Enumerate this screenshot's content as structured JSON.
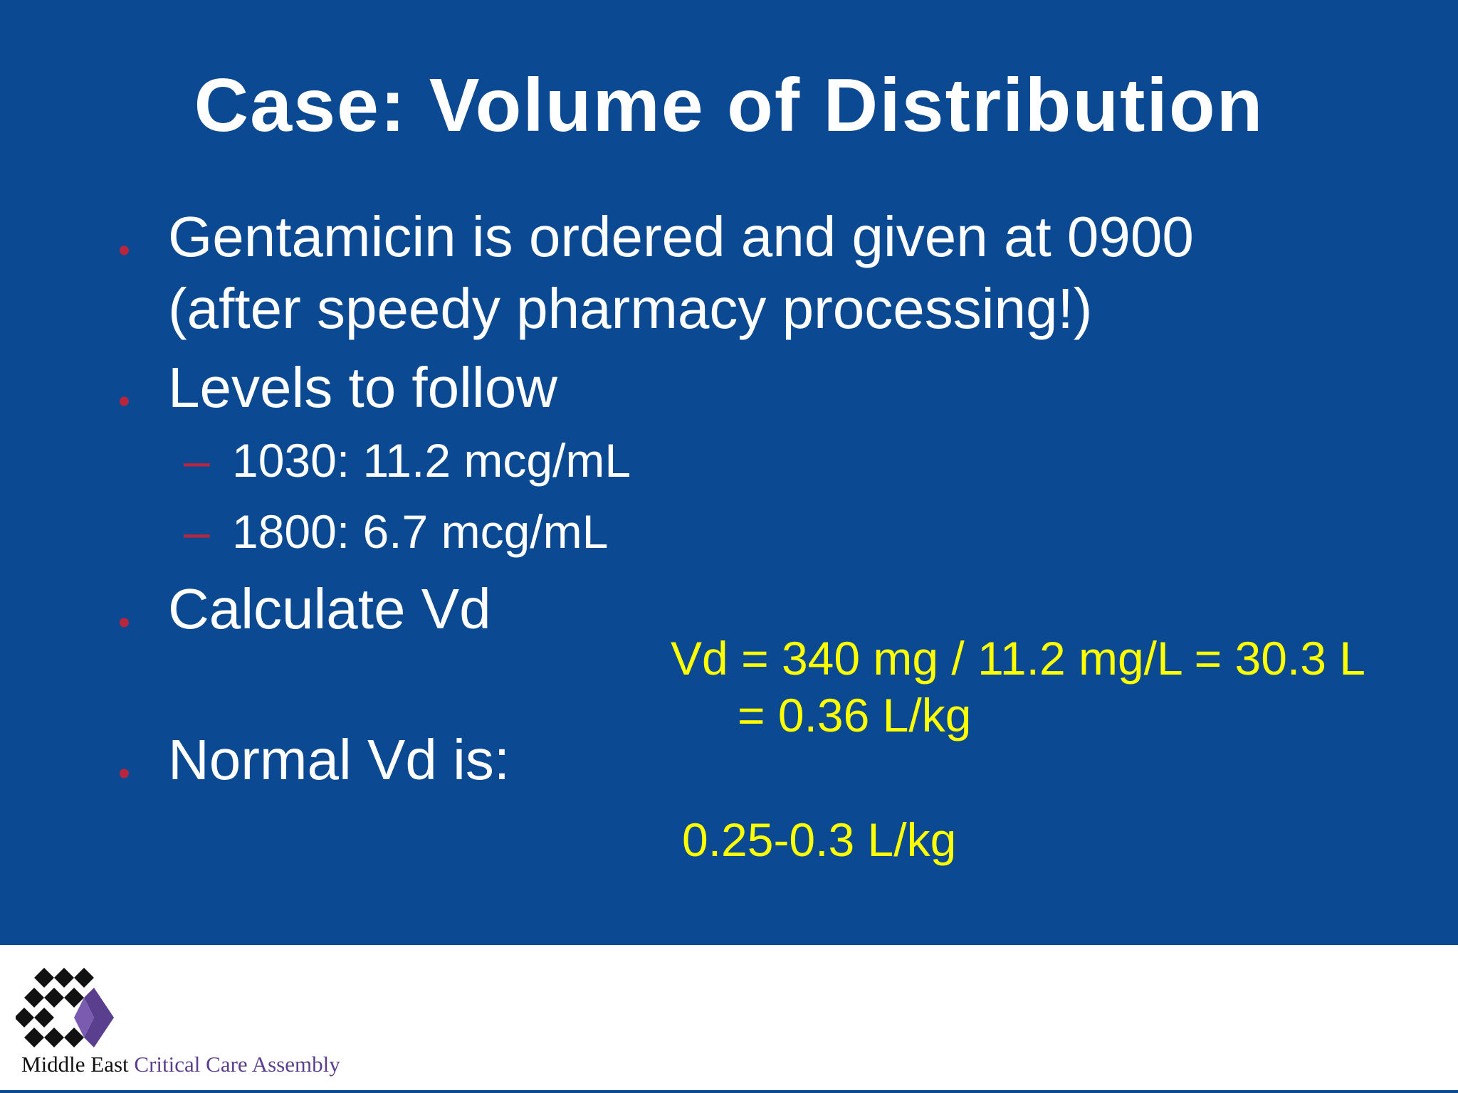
{
  "slide": {
    "title": "Case: Volume of Distribution",
    "bullets": [
      {
        "lines": [
          "Gentamicin is ordered and given at 0900",
          "(after speedy pharmacy processing!)"
        ]
      },
      {
        "lines": [
          "Levels to follow"
        ],
        "sub_items": [
          "1030: 11.2 mcg/mL",
          "1800: 6.7 mcg/mL"
        ]
      },
      {
        "lines": [
          "Calculate Vd"
        ]
      },
      {
        "lines": [
          "Normal Vd is:"
        ]
      }
    ],
    "answers": {
      "vd_calc_line1": "Vd = 340 mg / 11.2 mg/L = 30.3 L",
      "vd_calc_line2": "= 0.36 L/kg",
      "normal_vd": "0.25-0.3 L/kg"
    },
    "bullet_symbol": "•",
    "dash_symbol": "–",
    "colors": {
      "background": "#0b4a93",
      "text": "#ffffff",
      "bullet_marker": "#b8263d",
      "answer_text": "#ffff00",
      "logo_accent": "#5b3f8f"
    }
  },
  "footer": {
    "logo_icon": "diamond-grid-logo-icon",
    "org_name_part1": "Middle East",
    "org_name_part2": "Critical Care Assembly"
  }
}
